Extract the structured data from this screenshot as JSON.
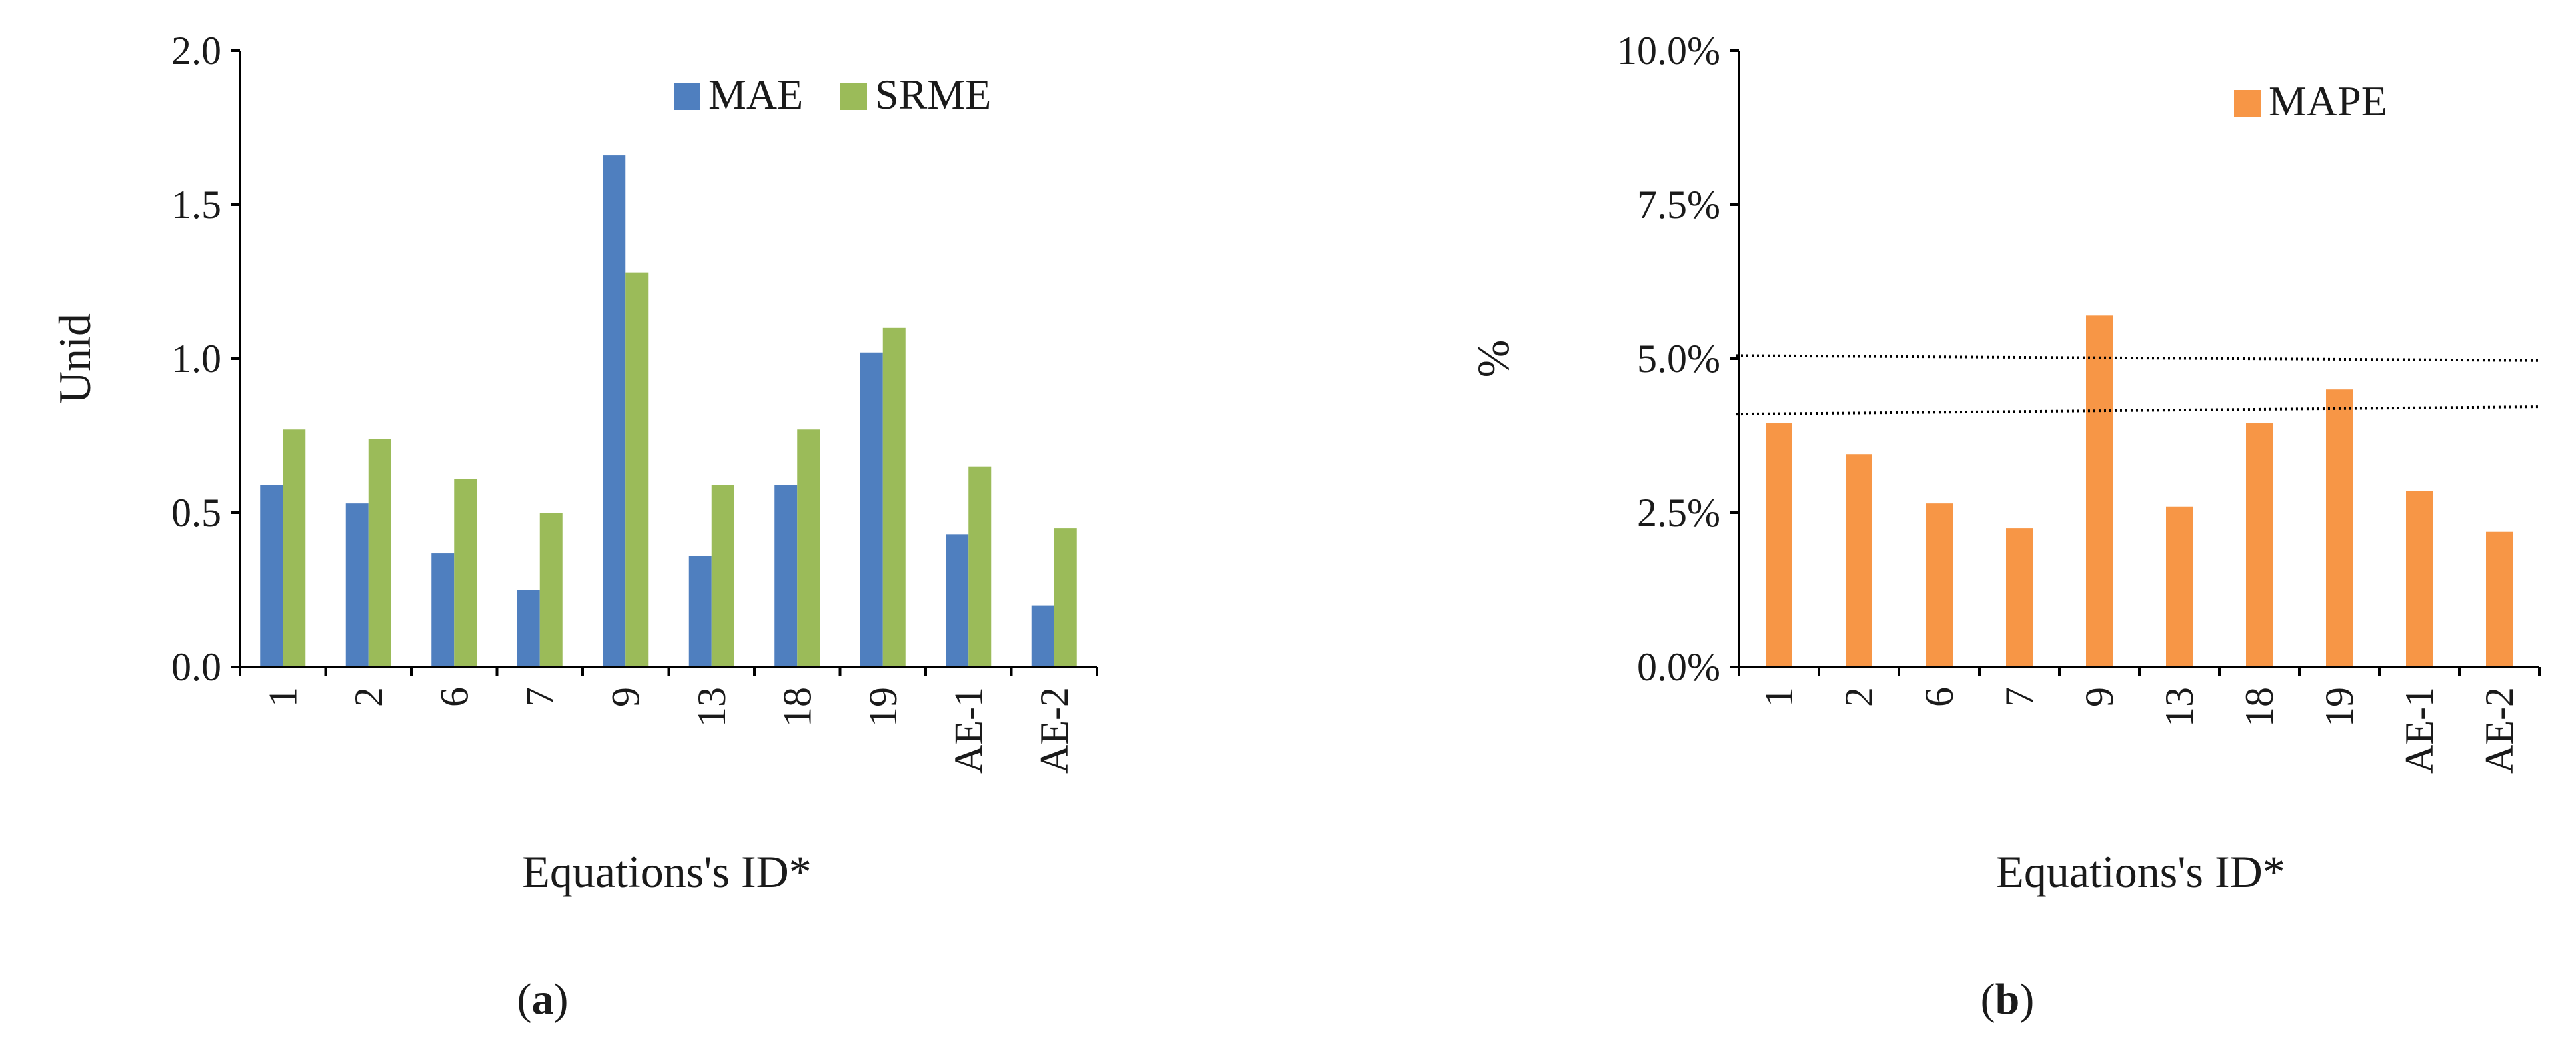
{
  "chart_data": [
    {
      "type": "bar",
      "title": "",
      "xlabel": "Equations's ID*",
      "ylabel": "Unid",
      "ylim": [
        0,
        2.0
      ],
      "yticks": [
        "0.0",
        "0.5",
        "1.0",
        "1.5",
        "2.0"
      ],
      "categories": [
        "1",
        "2",
        "6",
        "7",
        "9",
        "13",
        "18",
        "19",
        "AE-1",
        "AE-2"
      ],
      "series": [
        {
          "name": "MAE",
          "color": "#4f7fbf",
          "values": [
            0.59,
            0.53,
            0.37,
            0.25,
            1.66,
            0.36,
            0.59,
            1.02,
            0.43,
            0.2
          ]
        },
        {
          "name": "SRME",
          "color": "#9bbb59",
          "values": [
            0.77,
            0.74,
            0.61,
            0.5,
            1.28,
            0.59,
            0.77,
            1.1,
            0.65,
            0.45
          ]
        }
      ],
      "legend": "top-right",
      "grid": false,
      "panel_label": "(a)"
    },
    {
      "type": "bar",
      "title": "",
      "xlabel": "Equations's ID*",
      "ylabel": "%",
      "ylim": [
        0,
        10.0
      ],
      "yticks": [
        "0.0%",
        "2.5%",
        "5.0%",
        "7.5%",
        "10.0%"
      ],
      "categories": [
        "1",
        "2",
        "6",
        "7",
        "9",
        "13",
        "18",
        "19",
        "AE-1",
        "AE-2"
      ],
      "series": [
        {
          "name": "MAPE",
          "color": "#f79646",
          "values": [
            3.95,
            3.45,
            2.65,
            2.25,
            5.7,
            2.6,
            3.95,
            4.5,
            2.85,
            2.2
          ]
        }
      ],
      "reference_lines": [
        {
          "style": "dotted",
          "y_start": 5.05,
          "y_end": 4.97
        },
        {
          "style": "dotted",
          "y_start": 4.1,
          "y_end": 4.22
        }
      ],
      "legend": "top-right",
      "grid": false,
      "panel_label": "(b)"
    }
  ]
}
